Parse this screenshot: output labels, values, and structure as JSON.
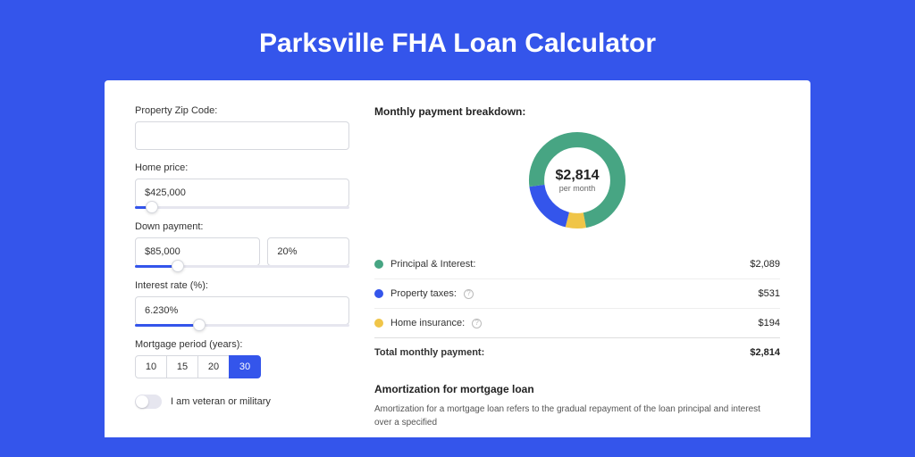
{
  "page_title": "Parksville FHA Loan Calculator",
  "colors": {
    "page_bg": "#3455eb",
    "card_bg": "#ffffff",
    "principal": "#47a583",
    "taxes": "#3455eb",
    "insurance": "#f0c548",
    "input_border": "#d6d8de",
    "slider_track": "#e6e6ef",
    "slider_fill": "#3455eb"
  },
  "inputs": {
    "zip": {
      "label": "Property Zip Code:",
      "value": ""
    },
    "price": {
      "label": "Home price:",
      "value": "$425,000",
      "slider_pct": 8
    },
    "down": {
      "label": "Down payment:",
      "value": "$85,000",
      "pct": "20%",
      "slider_pct": 20
    },
    "rate": {
      "label": "Interest rate (%):",
      "value": "6.230%",
      "slider_pct": 30
    },
    "period": {
      "label": "Mortgage period (years):",
      "options": [
        "10",
        "15",
        "20",
        "30"
      ],
      "active": "30"
    },
    "veteran": {
      "label": "I am veteran or military",
      "checked": false
    }
  },
  "breakdown": {
    "heading": "Monthly payment breakdown:",
    "center_value": "$2,814",
    "center_sub": "per month",
    "items": [
      {
        "label": "Principal & Interest:",
        "value": "$2,089",
        "color": "#47a583",
        "info": false,
        "pct": 74.2
      },
      {
        "label": "Property taxes:",
        "value": "$531",
        "color": "#3455eb",
        "info": true,
        "pct": 18.9
      },
      {
        "label": "Home insurance:",
        "value": "$194",
        "color": "#f0c548",
        "info": true,
        "pct": 6.9
      }
    ],
    "total": {
      "label": "Total monthly payment:",
      "value": "$2,814"
    }
  },
  "amort": {
    "title": "Amortization for mortgage loan",
    "text": "Amortization for a mortgage loan refers to the gradual repayment of the loan principal and interest over a specified"
  }
}
